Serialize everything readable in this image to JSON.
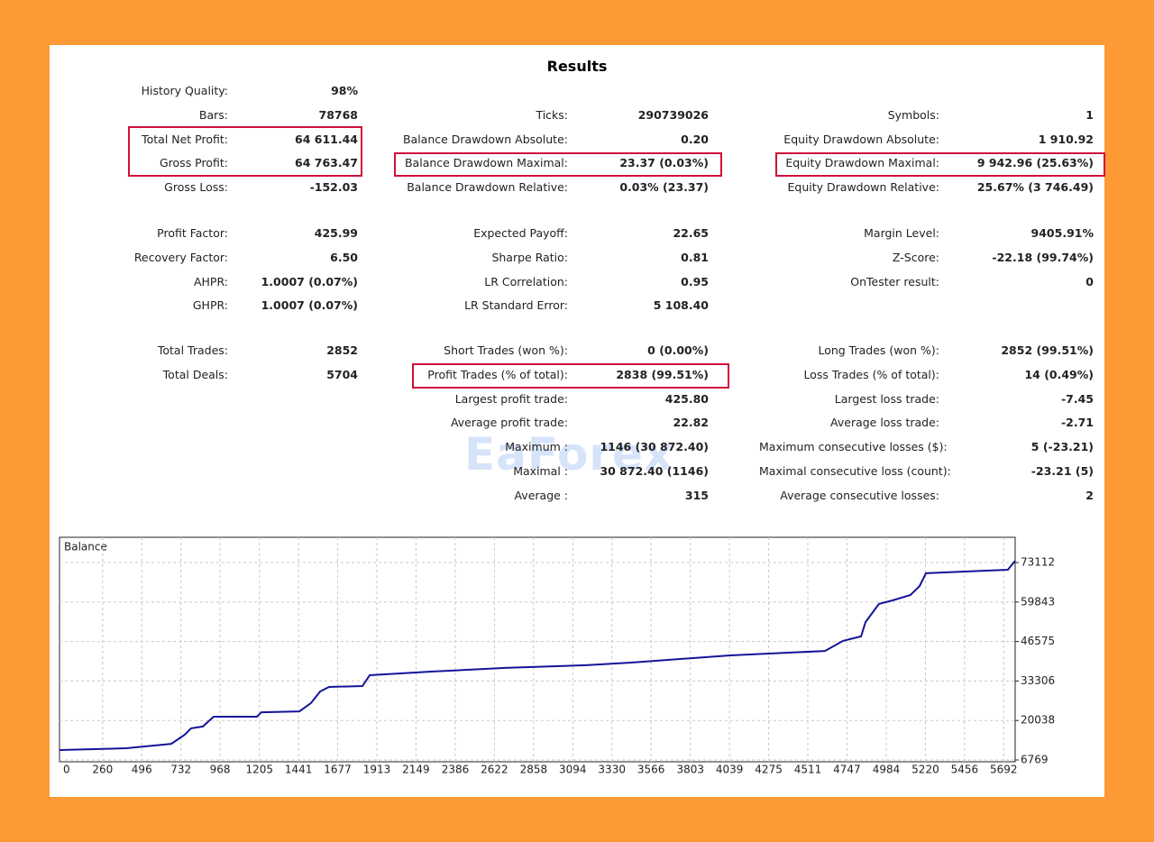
{
  "results": {
    "title": "Results",
    "watermark": "EaForex",
    "sections": [
      [
        [
          {
            "label": "History Quality:",
            "value": "98%"
          },
          null,
          null
        ],
        [
          {
            "label": "Bars:",
            "value": "78768"
          },
          {
            "label": "Ticks:",
            "value": "290739026"
          },
          {
            "label": "Symbols:",
            "value": "1"
          }
        ],
        [
          {
            "label": "Total Net Profit:",
            "value": "64 611.44"
          },
          {
            "label": "Balance Drawdown Absolute:",
            "value": "0.20"
          },
          {
            "label": "Equity Drawdown Absolute:",
            "value": "1 910.92"
          }
        ],
        [
          {
            "label": "Gross Profit:",
            "value": "64 763.47"
          },
          {
            "label": "Balance Drawdown Maximal:",
            "value": "23.37 (0.03%)"
          },
          {
            "label": "Equity Drawdown Maximal:",
            "value": "9 942.96 (25.63%)"
          }
        ],
        [
          {
            "label": "Gross Loss:",
            "value": "-152.03"
          },
          {
            "label": "Balance Drawdown Relative:",
            "value": "0.03% (23.37)"
          },
          {
            "label": "Equity Drawdown Relative:",
            "value": "25.67% (3 746.49)"
          }
        ]
      ],
      [
        [
          {
            "label": "Profit Factor:",
            "value": "425.99"
          },
          {
            "label": "Expected Payoff:",
            "value": "22.65"
          },
          {
            "label": "Margin Level:",
            "value": "9405.91%"
          }
        ],
        [
          {
            "label": "Recovery Factor:",
            "value": "6.50"
          },
          {
            "label": "Sharpe Ratio:",
            "value": "0.81"
          },
          {
            "label": "Z-Score:",
            "value": "-22.18 (99.74%)"
          }
        ],
        [
          {
            "label": "AHPR:",
            "value": "1.0007 (0.07%)"
          },
          {
            "label": "LR Correlation:",
            "value": "0.95"
          },
          {
            "label": "OnTester result:",
            "value": "0"
          }
        ],
        [
          {
            "label": "GHPR:",
            "value": "1.0007 (0.07%)"
          },
          {
            "label": "LR Standard Error:",
            "value": "5 108.40"
          },
          null
        ]
      ],
      [
        [
          {
            "label": "Total Trades:",
            "value": "2852"
          },
          {
            "label": "Short Trades (won %):",
            "value": "0 (0.00%)"
          },
          {
            "label": "Long Trades (won %):",
            "value": "2852 (99.51%)"
          }
        ],
        [
          {
            "label": "Total Deals:",
            "value": "5704"
          },
          {
            "label": "Profit Trades (% of total):",
            "value": "2838 (99.51%)"
          },
          {
            "label": "Loss Trades (% of total):",
            "value": "14 (0.49%)"
          }
        ],
        [
          null,
          {
            "label": "Largest profit trade:",
            "value": "425.80"
          },
          {
            "label": "Largest loss trade:",
            "value": "-7.45"
          }
        ],
        [
          null,
          {
            "label": "Average profit trade:",
            "value": "22.82"
          },
          {
            "label": "Average loss trade:",
            "value": "-2.71"
          }
        ],
        [
          null,
          {
            "label": "Maximum :",
            "value": "1146 (30 872.40)"
          },
          {
            "label": "Maximum consecutive losses ($):",
            "value": "5 (-23.21)"
          }
        ],
        [
          null,
          {
            "label": "Maximal :",
            "value": "30 872.40 (1146)"
          },
          {
            "label": "Maximal consecutive loss (count):",
            "value": "-23.21 (5)"
          }
        ],
        [
          null,
          {
            "label": "Average :",
            "value": "315"
          },
          {
            "label": "Average consecutive losses:",
            "value": "2"
          }
        ]
      ]
    ]
  },
  "chart_data": {
    "type": "line",
    "x": [
      0,
      402,
      674,
      755,
      793,
      864,
      929,
      1190,
      1217,
      1446,
      1516,
      1571,
      1625,
      1826,
      1870,
      2250,
      2685,
      3174,
      3446,
      4043,
      4614,
      4723,
      4832,
      4859,
      4940,
      5022,
      5130,
      5185,
      5223,
      5457,
      5717,
      5761
    ],
    "series": [
      {
        "name": "Balance",
        "color": "#14149a",
        "values": [
          10100,
          10700,
          12200,
          15250,
          17400,
          18000,
          21300,
          21300,
          22800,
          23100,
          25900,
          29800,
          31300,
          31600,
          35250,
          36500,
          37700,
          38600,
          39500,
          41900,
          43400,
          46800,
          48300,
          53100,
          59200,
          60400,
          62200,
          65200,
          69500,
          70100,
          70700,
          73700
        ]
      }
    ],
    "xlim": [
      0,
      5761
    ],
    "ylim": [
      6769,
      81600
    ],
    "xticks": [
      0,
      260,
      496,
      732,
      968,
      1205,
      1441,
      1677,
      1913,
      2149,
      2386,
      2622,
      2858,
      3094,
      3330,
      3566,
      3803,
      4039,
      4275,
      4511,
      4747,
      4984,
      5220,
      5456,
      5692
    ],
    "yticks": [
      6769,
      20038,
      33306,
      46575,
      59843,
      73112
    ],
    "grid": true
  }
}
